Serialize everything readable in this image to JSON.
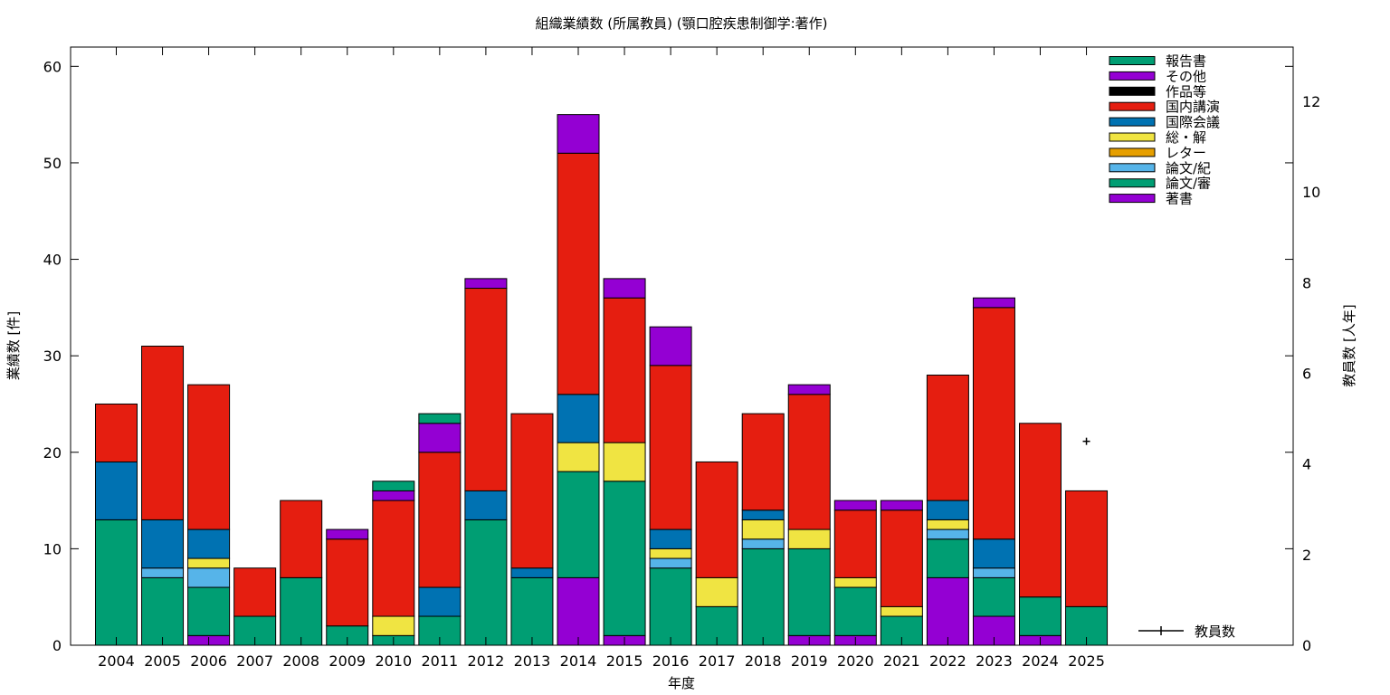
{
  "chart_data": {
    "type": "bar",
    "stacked": true,
    "title": "組織業績数 (所属教員) (顎口腔疾患制御学:著作)",
    "xlabel": "年度",
    "ylabel": "業績数 [件]",
    "y2label": "教員数 [人年]",
    "ylim": [
      0,
      62
    ],
    "y2lim": [
      0,
      13.2
    ],
    "yticks": [
      0,
      10,
      20,
      30,
      40,
      50,
      60
    ],
    "y2ticks": [
      0,
      2,
      4,
      6,
      8,
      10,
      12
    ],
    "grid": false,
    "legend_position": "top-right",
    "categories": [
      "2004",
      "2005",
      "2006",
      "2007",
      "2008",
      "2009",
      "2010",
      "2011",
      "2012",
      "2013",
      "2014",
      "2015",
      "2016",
      "2017",
      "2018",
      "2019",
      "2020",
      "2021",
      "2022",
      "2023",
      "2024",
      "2025"
    ],
    "series": [
      {
        "name": "著書",
        "color": "#9400d3",
        "values": [
          0,
          0,
          1,
          0,
          0,
          0,
          0,
          0,
          0,
          0,
          7,
          1,
          0,
          0,
          0,
          1,
          1,
          0,
          7,
          3,
          1,
          0
        ]
      },
      {
        "name": "論文/審",
        "color": "#009e73",
        "values": [
          13,
          7,
          5,
          3,
          7,
          2,
          1,
          3,
          13,
          7,
          11,
          16,
          8,
          4,
          10,
          9,
          5,
          3,
          4,
          4,
          4,
          4
        ]
      },
      {
        "name": "論文/紀",
        "color": "#56b4e9",
        "values": [
          0,
          1,
          2,
          0,
          0,
          0,
          0,
          0,
          0,
          0,
          0,
          0,
          1,
          0,
          1,
          0,
          0,
          0,
          1,
          1,
          0,
          0
        ]
      },
      {
        "name": "レター",
        "color": "#e69f00",
        "values": [
          0,
          0,
          0,
          0,
          0,
          0,
          0,
          0,
          0,
          0,
          0,
          0,
          0,
          0,
          0,
          0,
          0,
          0,
          0,
          0,
          0,
          0
        ]
      },
      {
        "name": "総・解",
        "color": "#f0e442",
        "values": [
          0,
          0,
          1,
          0,
          0,
          0,
          2,
          0,
          0,
          0,
          3,
          4,
          1,
          3,
          2,
          2,
          1,
          1,
          1,
          0,
          0,
          0
        ]
      },
      {
        "name": "国際会議",
        "color": "#0072b2",
        "values": [
          6,
          5,
          3,
          0,
          0,
          0,
          0,
          3,
          3,
          1,
          5,
          0,
          2,
          0,
          1,
          0,
          0,
          0,
          2,
          3,
          0,
          0
        ]
      },
      {
        "name": "国内講演",
        "color": "#e51e10",
        "values": [
          6,
          18,
          15,
          5,
          8,
          9,
          12,
          14,
          21,
          16,
          25,
          15,
          17,
          12,
          10,
          14,
          7,
          10,
          13,
          24,
          18,
          12
        ]
      },
      {
        "name": "作品等",
        "color": "#000000",
        "values": [
          0,
          0,
          0,
          0,
          0,
          0,
          0,
          0,
          0,
          0,
          0,
          0,
          0,
          0,
          0,
          0,
          0,
          0,
          0,
          0,
          0,
          0
        ]
      },
      {
        "name": "その他",
        "color": "#9400d3",
        "values": [
          0,
          0,
          0,
          0,
          0,
          1,
          1,
          3,
          1,
          0,
          4,
          2,
          4,
          0,
          0,
          1,
          1,
          1,
          0,
          1,
          0,
          0
        ]
      },
      {
        "name": "報告書",
        "color": "#009e73",
        "values": [
          0,
          0,
          0,
          0,
          0,
          0,
          1,
          1,
          0,
          0,
          0,
          0,
          0,
          0,
          0,
          0,
          0,
          0,
          0,
          0,
          0,
          0
        ]
      }
    ],
    "legend_order": [
      "報告書",
      "その他",
      "作品等",
      "国内講演",
      "国際会議",
      "総・解",
      "レター",
      "論文/紀",
      "論文/審",
      "著書"
    ],
    "line_series": {
      "name": "教員数",
      "axis": "y2",
      "points": [
        {
          "x": "2025",
          "y": 4.5
        }
      ]
    }
  }
}
